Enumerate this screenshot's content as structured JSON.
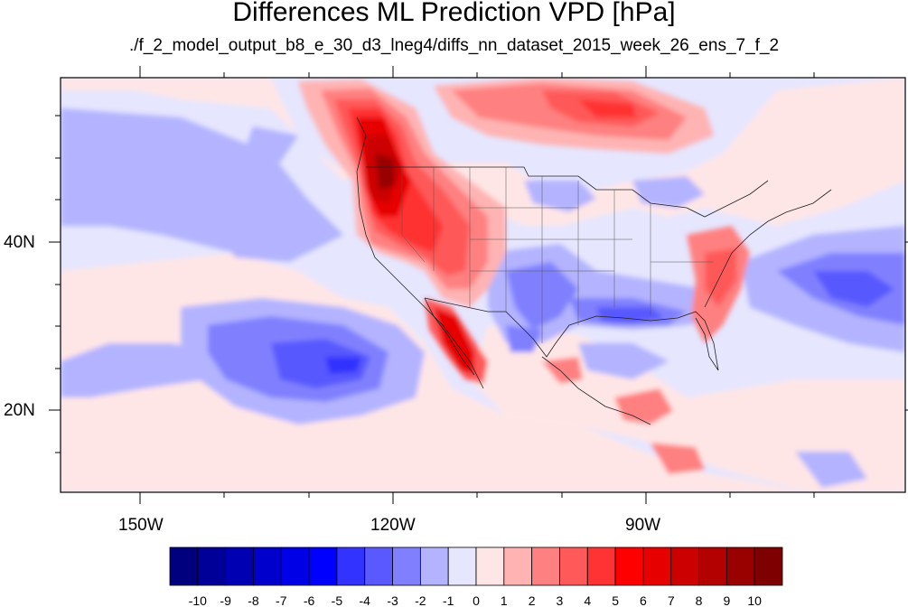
{
  "title": "Differences ML Prediction VPD [hPa]",
  "subtitle": "./f_2_model_output_b8_e_30_d3_lneg4/diffs_nn_dataset_2015_week_26_ens_7_f_2",
  "axes": {
    "lon_labels": [
      "150W",
      "120W",
      "90W"
    ],
    "lat_labels": [
      "40N",
      "20N"
    ]
  },
  "colorbar": {
    "labels": [
      "-10",
      "-9",
      "-8",
      "-7",
      "-6",
      "-5",
      "-4",
      "-3",
      "-2",
      "-1",
      "0",
      "1",
      "2",
      "3",
      "4",
      "5",
      "6",
      "7",
      "8",
      "9",
      "10"
    ],
    "colors": [
      "#00007f",
      "#000099",
      "#0000b3",
      "#0000cc",
      "#0000e6",
      "#0000ff",
      "#3333ff",
      "#5959ff",
      "#8080ff",
      "#b3b3ff",
      "#e6e6ff",
      "#ffe6e6",
      "#ffb3b3",
      "#ff8080",
      "#ff5959",
      "#ff3333",
      "#ff0000",
      "#e60000",
      "#cc0000",
      "#b30000",
      "#990000",
      "#7f0000"
    ]
  },
  "colors": {
    "background": "#e6e6ff",
    "frame": "#000000"
  }
}
